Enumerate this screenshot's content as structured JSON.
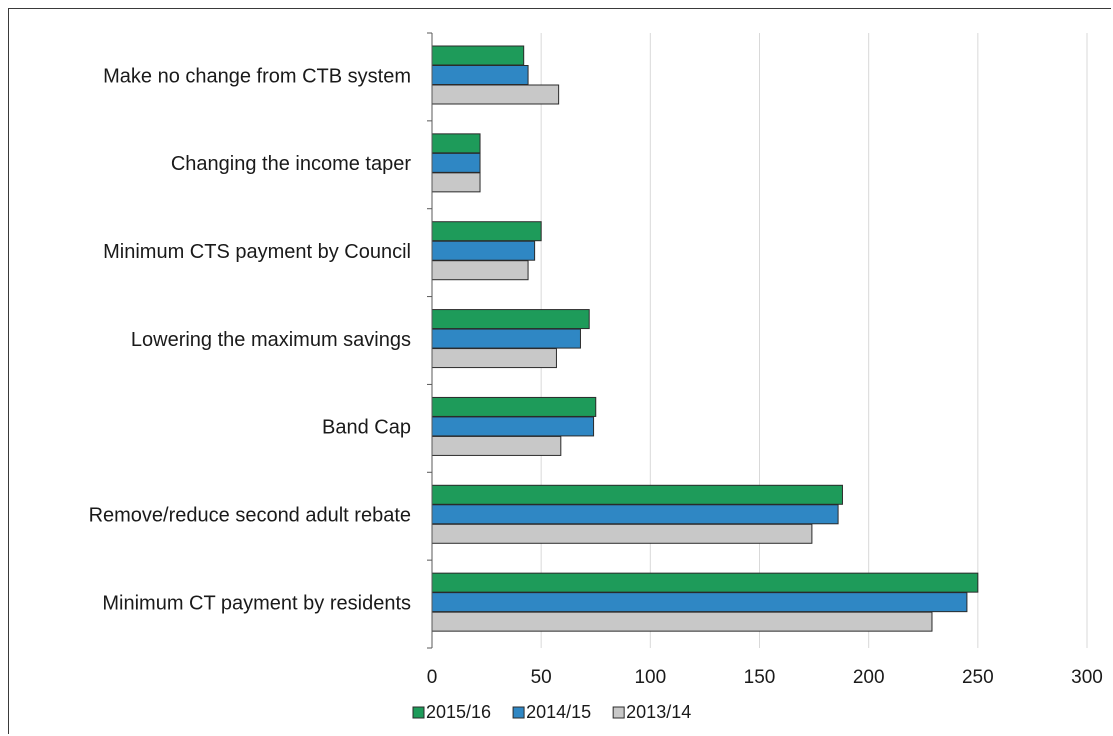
{
  "chart_data": {
    "type": "bar",
    "orientation": "horizontal",
    "categories": [
      "Make no change from CTB system",
      "Changing the income taper",
      "Minimum CTS payment by Council",
      "Lowering the maximum savings",
      "Band Cap",
      "Remove/reduce second adult rebate",
      "Minimum CT payment by residents"
    ],
    "series": [
      {
        "name": "2015/16",
        "color": "#1e9b5a",
        "values": [
          42,
          22,
          50,
          72,
          75,
          188,
          250
        ]
      },
      {
        "name": "2014/15",
        "color": "#2f87c4",
        "values": [
          44,
          22,
          47,
          68,
          74,
          186,
          245
        ]
      },
      {
        "name": "2013/14",
        "color": "#c8c8c8",
        "values": [
          58,
          22,
          44,
          57,
          59,
          174,
          229
        ]
      }
    ],
    "xlim": [
      0,
      300
    ],
    "xticks": [
      0,
      50,
      100,
      150,
      200,
      250,
      300
    ],
    "grid": true,
    "legend_position": "bottom"
  }
}
